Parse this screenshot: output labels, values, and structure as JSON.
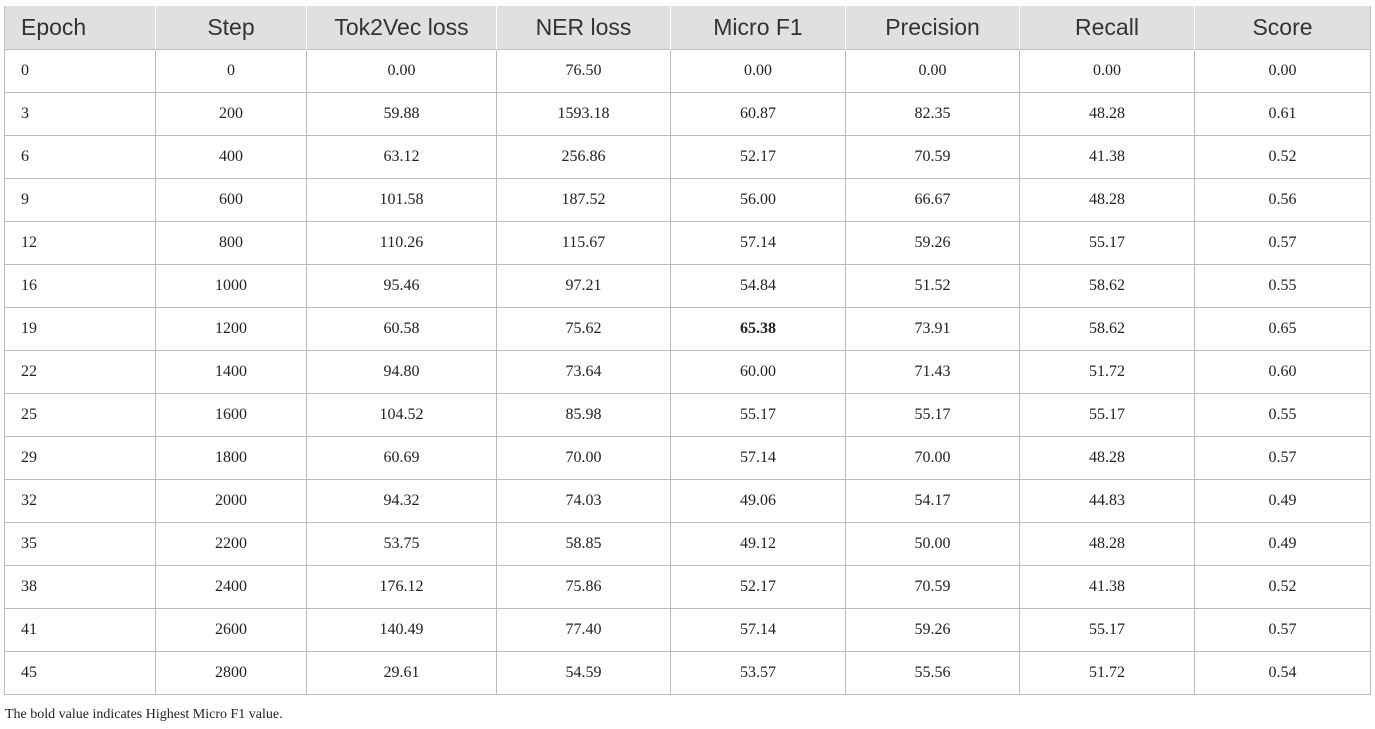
{
  "table": {
    "columns": [
      "Epoch",
      "Step",
      "Tok2Vec loss",
      "NER loss",
      "Micro F1",
      "Precision",
      "Recall",
      "Score"
    ],
    "rows": [
      [
        "0",
        "0",
        "0.00",
        "76.50",
        "0.00",
        "0.00",
        "0.00",
        "0.00"
      ],
      [
        "3",
        "200",
        "59.88",
        "1593.18",
        "60.87",
        "82.35",
        "48.28",
        "0.61"
      ],
      [
        "6",
        "400",
        "63.12",
        "256.86",
        "52.17",
        "70.59",
        "41.38",
        "0.52"
      ],
      [
        "9",
        "600",
        "101.58",
        "187.52",
        "56.00",
        "66.67",
        "48.28",
        "0.56"
      ],
      [
        "12",
        "800",
        "110.26",
        "115.67",
        "57.14",
        "59.26",
        "55.17",
        "0.57"
      ],
      [
        "16",
        "1000",
        "95.46",
        "97.21",
        "54.84",
        "51.52",
        "58.62",
        "0.55"
      ],
      [
        "19",
        "1200",
        "60.58",
        "75.62",
        "65.38",
        "73.91",
        "58.62",
        "0.65"
      ],
      [
        "22",
        "1400",
        "94.80",
        "73.64",
        "60.00",
        "71.43",
        "51.72",
        "0.60"
      ],
      [
        "25",
        "1600",
        "104.52",
        "85.98",
        "55.17",
        "55.17",
        "55.17",
        "0.55"
      ],
      [
        "29",
        "1800",
        "60.69",
        "70.00",
        "57.14",
        "70.00",
        "48.28",
        "0.57"
      ],
      [
        "32",
        "2000",
        "94.32",
        "74.03",
        "49.06",
        "54.17",
        "44.83",
        "0.49"
      ],
      [
        "35",
        "2200",
        "53.75",
        "58.85",
        "49.12",
        "50.00",
        "48.28",
        "0.49"
      ],
      [
        "38",
        "2400",
        "176.12",
        "75.86",
        "52.17",
        "70.59",
        "41.38",
        "0.52"
      ],
      [
        "41",
        "2600",
        "140.49",
        "77.40",
        "57.14",
        "59.26",
        "55.17",
        "0.57"
      ],
      [
        "45",
        "2800",
        "29.61",
        "54.59",
        "53.57",
        "55.56",
        "51.72",
        "0.54"
      ]
    ],
    "bold_cell": {
      "row": 6,
      "col": 4
    }
  },
  "footnote": "The bold value indicates Highest Micro F1 value."
}
